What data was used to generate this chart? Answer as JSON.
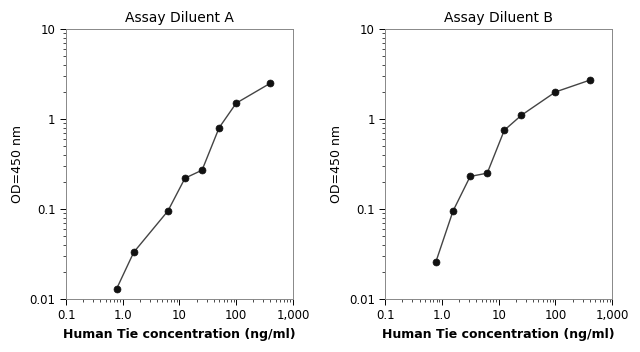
{
  "panel_A": {
    "title": "Assay Diluent A",
    "x": [
      0.78,
      1.56,
      6.25,
      12.5,
      25,
      50,
      100,
      400
    ],
    "y": [
      0.013,
      0.033,
      0.095,
      0.22,
      0.27,
      0.8,
      1.5,
      2.5
    ]
  },
  "panel_B": {
    "title": "Assay Diluent B",
    "x": [
      0.78,
      1.56,
      3.125,
      6.25,
      12.5,
      25,
      100,
      400
    ],
    "y": [
      0.026,
      0.095,
      0.23,
      0.25,
      0.75,
      1.1,
      2.0,
      2.7
    ]
  },
  "xlabel": "Human Tie concentration (ng/ml)",
  "ylabel": "OD=450 nm",
  "xlim": [
    0.3,
    1000
  ],
  "ylim": [
    0.01,
    10
  ],
  "xticks": [
    0.1,
    1.0,
    10,
    100,
    1000
  ],
  "xtick_labels": [
    "0.1",
    "1.0",
    "10",
    "100",
    "1,000"
  ],
  "yticks": [
    0.01,
    0.1,
    1,
    10
  ],
  "ytick_labels": [
    "0.01",
    "0.1",
    "1",
    "10"
  ],
  "line_color": "#444444",
  "marker_color": "#111111",
  "marker_size": 5,
  "linewidth": 1.0,
  "bg_color": "#ffffff",
  "title_fontsize": 10,
  "label_fontsize": 9,
  "tick_fontsize": 8.5
}
